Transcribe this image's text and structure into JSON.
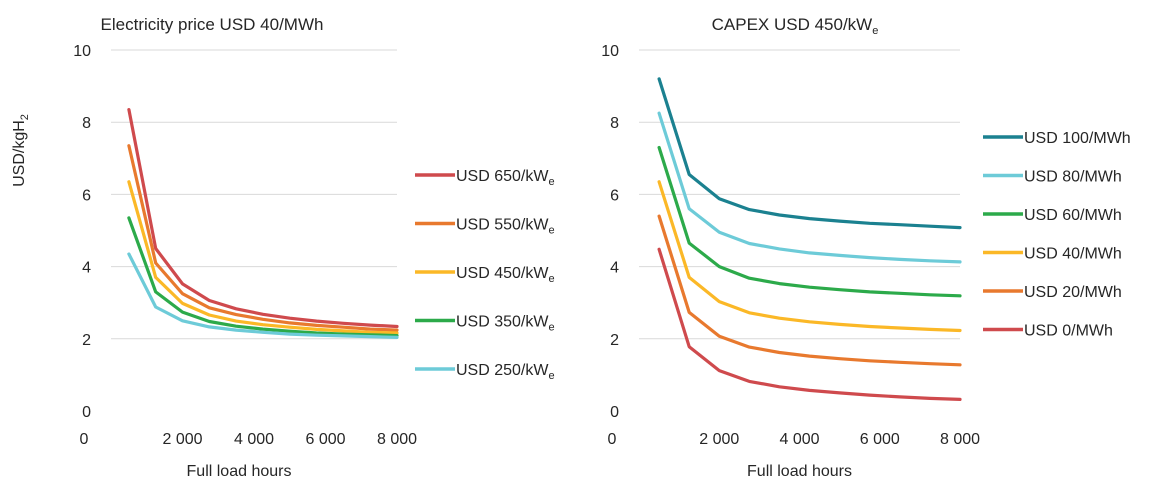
{
  "chart_data": [
    {
      "type": "line",
      "title": "Electricity price USD 40/MWh",
      "xlabel": "Full load hours",
      "ylabel": "USD/kgH",
      "ylabel_sub": "2",
      "xlim": [
        0,
        8000
      ],
      "ylim": [
        0,
        10
      ],
      "x_ticks": [
        0,
        2000,
        4000,
        6000,
        8000
      ],
      "x_tick_labels": [
        "0",
        "2 000",
        "4 000",
        "6 000",
        "8 000"
      ],
      "y_ticks": [
        0,
        2,
        4,
        6,
        8,
        10
      ],
      "y_tick_labels": [
        "0",
        "2",
        "4",
        "6",
        "8",
        "10"
      ],
      "grid": true,
      "legend_position": "right",
      "x": [
        500,
        1250,
        2000,
        2750,
        3500,
        4250,
        5000,
        5750,
        6500,
        7250,
        8000
      ],
      "series": [
        {
          "name": "USD 650/kW",
          "name_sub": "e",
          "color": "#cf4a4d",
          "values": [
            8.35,
            4.5,
            3.52,
            3.06,
            2.83,
            2.68,
            2.57,
            2.49,
            2.43,
            2.38,
            2.34
          ]
        },
        {
          "name": "USD 550/kW",
          "name_sub": "e",
          "color": "#e8792e",
          "values": [
            7.35,
            4.1,
            3.25,
            2.86,
            2.67,
            2.54,
            2.44,
            2.37,
            2.32,
            2.27,
            2.24
          ]
        },
        {
          "name": "USD 450/kW",
          "name_sub": "e",
          "color": "#fbb827",
          "values": [
            6.35,
            3.7,
            2.98,
            2.66,
            2.49,
            2.39,
            2.32,
            2.26,
            2.22,
            2.18,
            2.16
          ]
        },
        {
          "name": "USD 350/kW",
          "name_sub": "e",
          "color": "#2caa4a",
          "values": [
            5.35,
            3.3,
            2.74,
            2.48,
            2.35,
            2.27,
            2.21,
            2.16,
            2.13,
            2.11,
            2.09
          ]
        },
        {
          "name": "USD 250/kW",
          "name_sub": "e",
          "color": "#6dcbd8",
          "values": [
            4.35,
            2.88,
            2.5,
            2.33,
            2.24,
            2.18,
            2.13,
            2.1,
            2.08,
            2.06,
            2.04
          ]
        }
      ]
    },
    {
      "type": "line",
      "title": "CAPEX USD 450/kW",
      "title_sub": "e",
      "xlabel": "Full load hours",
      "ylabel": "",
      "xlim": [
        0,
        8000
      ],
      "ylim": [
        0,
        10
      ],
      "x_ticks": [
        0,
        2000,
        4000,
        6000,
        8000
      ],
      "x_tick_labels": [
        "0",
        "2 000",
        "4 000",
        "6 000",
        "8 000"
      ],
      "y_ticks": [
        0,
        2,
        4,
        6,
        8,
        10
      ],
      "y_tick_labels": [
        "0",
        "2",
        "4",
        "6",
        "8",
        "10"
      ],
      "grid": true,
      "legend_position": "right",
      "x": [
        500,
        1250,
        2000,
        2750,
        3500,
        4250,
        5000,
        5750,
        6500,
        7250,
        8000
      ],
      "series": [
        {
          "name": "USD 100/MWh",
          "color": "#1b8190",
          "values": [
            9.2,
            6.55,
            5.88,
            5.58,
            5.43,
            5.33,
            5.26,
            5.2,
            5.16,
            5.12,
            5.08
          ]
        },
        {
          "name": "USD 80/MWh",
          "color": "#6dcbd8",
          "values": [
            8.25,
            5.6,
            4.95,
            4.64,
            4.49,
            4.38,
            4.31,
            4.25,
            4.2,
            4.16,
            4.13
          ]
        },
        {
          "name": "USD 60/MWh",
          "color": "#2caa4a",
          "values": [
            7.3,
            4.65,
            4.0,
            3.68,
            3.53,
            3.43,
            3.36,
            3.3,
            3.26,
            3.22,
            3.19
          ]
        },
        {
          "name": "USD 40/MWh",
          "color": "#fbb827",
          "values": [
            6.35,
            3.7,
            3.03,
            2.72,
            2.57,
            2.47,
            2.4,
            2.34,
            2.3,
            2.26,
            2.23
          ]
        },
        {
          "name": "USD 20/MWh",
          "color": "#e8792e",
          "values": [
            5.4,
            2.73,
            2.07,
            1.77,
            1.62,
            1.52,
            1.45,
            1.39,
            1.35,
            1.31,
            1.28
          ]
        },
        {
          "name": "USD 0/MWh",
          "color": "#cf4a4d",
          "values": [
            4.48,
            1.78,
            1.12,
            0.82,
            0.67,
            0.57,
            0.5,
            0.44,
            0.39,
            0.35,
            0.32
          ]
        }
      ]
    }
  ]
}
